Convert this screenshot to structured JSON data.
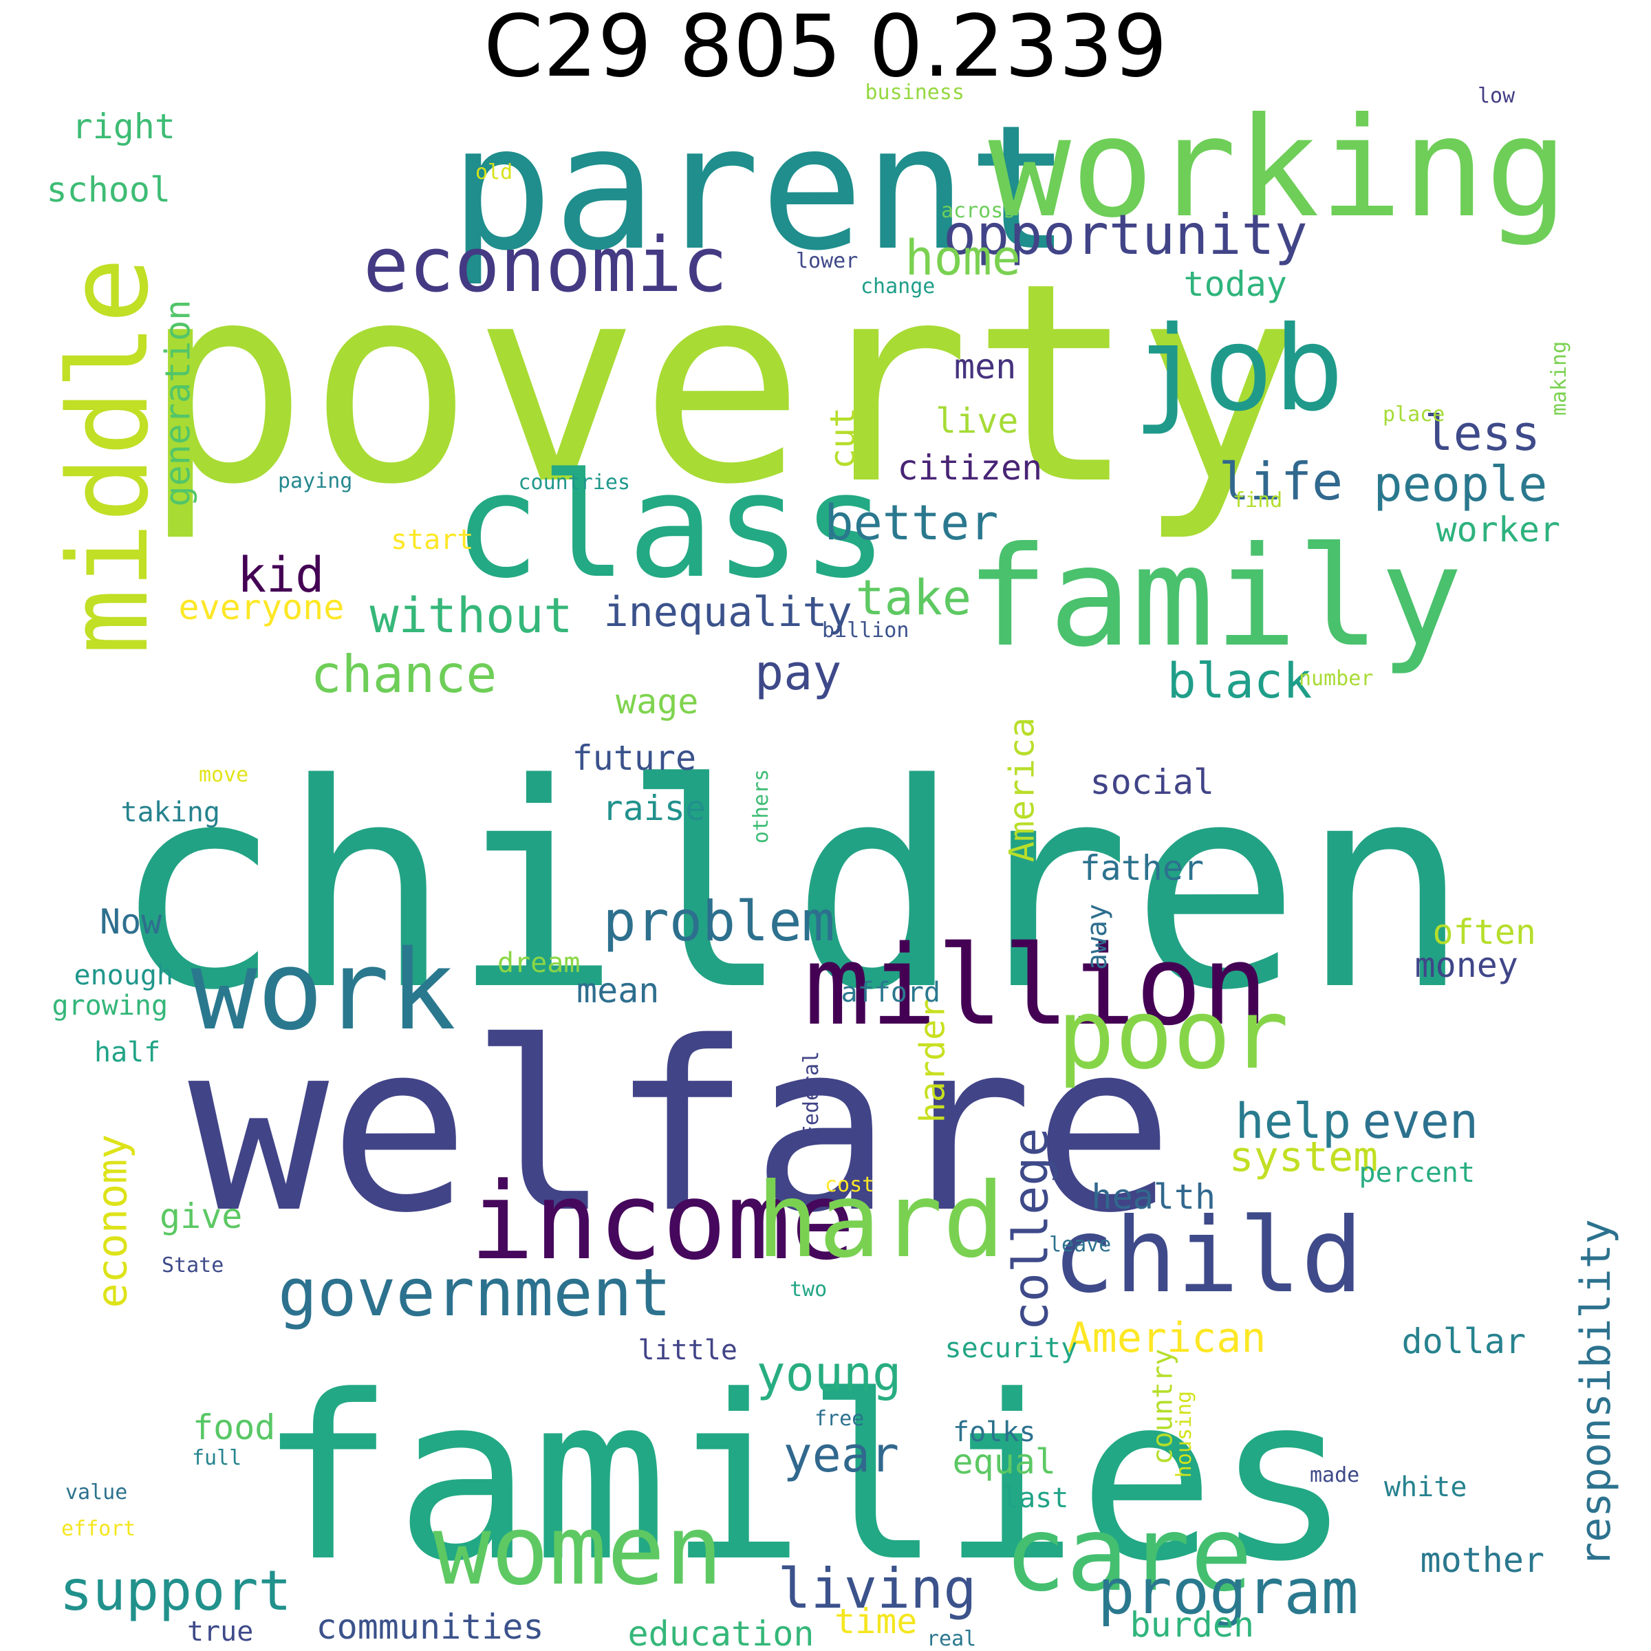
{
  "title": "C29 805 0.2339",
  "words": [
    {
      "text": "children",
      "color": "#22a284"
    },
    {
      "text": "poverty",
      "color": "#a8db34"
    },
    {
      "text": "welfare",
      "color": "#414487"
    },
    {
      "text": "families",
      "color": "#22a884"
    },
    {
      "text": "parent",
      "color": "#1f8e8c"
    },
    {
      "text": "working",
      "color": "#6ece58"
    },
    {
      "text": "class",
      "color": "#23a983"
    },
    {
      "text": "family",
      "color": "#4ac16d"
    },
    {
      "text": "middle",
      "color": "#c0df25"
    },
    {
      "text": "million",
      "color": "#440154"
    },
    {
      "text": "income",
      "color": "#46085c"
    },
    {
      "text": "child",
      "color": "#3e4a89"
    },
    {
      "text": "work",
      "color": "#2a788e"
    },
    {
      "text": "hard",
      "color": "#7ad151"
    },
    {
      "text": "care",
      "color": "#44bf70"
    },
    {
      "text": "women",
      "color": "#5ec962"
    },
    {
      "text": "job",
      "color": "#1f9a8a"
    },
    {
      "text": "poor",
      "color": "#86d549"
    },
    {
      "text": "economic",
      "color": "#443a83"
    },
    {
      "text": "government",
      "color": "#2c728e"
    },
    {
      "text": "program",
      "color": "#2a788e"
    },
    {
      "text": "support",
      "color": "#21918c"
    },
    {
      "text": "opportunity",
      "color": "#414487"
    },
    {
      "text": "problem",
      "color": "#2d708e"
    },
    {
      "text": "living",
      "color": "#3b528b"
    },
    {
      "text": "life",
      "color": "#31688e"
    },
    {
      "text": "chance",
      "color": "#6ece58"
    },
    {
      "text": "better",
      "color": "#2a788e"
    },
    {
      "text": "home",
      "color": "#7ad151"
    },
    {
      "text": "help",
      "color": "#297b8e"
    },
    {
      "text": "even",
      "color": "#2c728e"
    },
    {
      "text": "people",
      "color": "#2a788e"
    },
    {
      "text": "without",
      "color": "#35b779"
    },
    {
      "text": "inequality",
      "color": "#3b528b"
    },
    {
      "text": "take",
      "color": "#5ec962"
    },
    {
      "text": "black",
      "color": "#1f9e89"
    },
    {
      "text": "pay",
      "color": "#3e4989"
    },
    {
      "text": "kid",
      "color": "#440154"
    },
    {
      "text": "less",
      "color": "#3e4a89"
    },
    {
      "text": "young",
      "color": "#27ad81"
    },
    {
      "text": "year",
      "color": "#31688e"
    },
    {
      "text": "American",
      "color": "#fde725"
    },
    {
      "text": "college",
      "color": "#3e4a89"
    },
    {
      "text": "economy",
      "color": "#dde318"
    },
    {
      "text": "responsibility",
      "color": "#2c728e"
    },
    {
      "text": "communities",
      "color": "#3b528b"
    },
    {
      "text": "education",
      "color": "#35b779"
    },
    {
      "text": "system",
      "color": "#c2df23"
    },
    {
      "text": "generation",
      "color": "#52c569"
    },
    {
      "text": "America",
      "color": "#b8de29"
    },
    {
      "text": "harder",
      "color": "#c8e020"
    },
    {
      "text": "health",
      "color": "#31688e"
    },
    {
      "text": "dollar",
      "color": "#26828e"
    },
    {
      "text": "burden",
      "color": "#2fb47c"
    },
    {
      "text": "mother",
      "color": "#2a788e"
    },
    {
      "text": "right",
      "color": "#3dbc74"
    },
    {
      "text": "school",
      "color": "#3dbc74"
    },
    {
      "text": "today",
      "color": "#2fb47c"
    },
    {
      "text": "men",
      "color": "#46327e"
    },
    {
      "text": "live",
      "color": "#a5db36"
    },
    {
      "text": "citizen",
      "color": "#482475"
    },
    {
      "text": "worker",
      "color": "#2db27d"
    },
    {
      "text": "wage",
      "color": "#7fd34e"
    },
    {
      "text": "future",
      "color": "#3b528b"
    },
    {
      "text": "raise",
      "color": "#21918c"
    },
    {
      "text": "social",
      "color": "#414487"
    },
    {
      "text": "father",
      "color": "#2c728e"
    },
    {
      "text": "often",
      "color": "#b5de2b"
    },
    {
      "text": "money",
      "color": "#404688"
    },
    {
      "text": "dream",
      "color": "#8bd646"
    },
    {
      "text": "mean",
      "color": "#2e6e8e"
    },
    {
      "text": "cut",
      "color": "#b5de2b"
    },
    {
      "text": "everyone",
      "color": "#fde725"
    },
    {
      "text": "give",
      "color": "#5cc863"
    },
    {
      "text": "food",
      "color": "#58c765"
    },
    {
      "text": "folks",
      "color": "#2c728e"
    },
    {
      "text": "equal",
      "color": "#5cc863"
    },
    {
      "text": "time",
      "color": "#f4e61e"
    },
    {
      "text": "Now",
      "color": "#2e6f8e"
    },
    {
      "text": "enough",
      "color": "#1f968b"
    },
    {
      "text": "growing",
      "color": "#34b679"
    },
    {
      "text": "half",
      "color": "#20a386"
    },
    {
      "text": "away",
      "color": "#2e6e8e"
    },
    {
      "text": "country",
      "color": "#b5de2b"
    },
    {
      "text": "white",
      "color": "#26828e"
    },
    {
      "text": "last",
      "color": "#20a386"
    },
    {
      "text": "percent",
      "color": "#27ad81"
    },
    {
      "text": "security",
      "color": "#21a585"
    },
    {
      "text": "little",
      "color": "#414487"
    },
    {
      "text": "taking",
      "color": "#26828e"
    },
    {
      "text": "business",
      "color": "#95d840"
    },
    {
      "text": "low",
      "color": "#433e85"
    },
    {
      "text": "old",
      "color": "#d8e219"
    },
    {
      "text": "across",
      "color": "#6ccd5a"
    },
    {
      "text": "lower",
      "color": "#3f4889"
    },
    {
      "text": "change",
      "color": "#1f9e89"
    },
    {
      "text": "making",
      "color": "#7ad151"
    },
    {
      "text": "place",
      "color": "#a5db36"
    },
    {
      "text": "paying",
      "color": "#24878e"
    },
    {
      "text": "countries",
      "color": "#1f988b"
    },
    {
      "text": "start",
      "color": "#fde725"
    },
    {
      "text": "find",
      "color": "#b2dd2d"
    },
    {
      "text": "billion",
      "color": "#3b528b"
    },
    {
      "text": "number",
      "color": "#a8db34"
    },
    {
      "text": "move",
      "color": "#e2e418"
    },
    {
      "text": "others",
      "color": "#3dbc74"
    },
    {
      "text": "Federal",
      "color": "#414487"
    },
    {
      "text": "cost",
      "color": "#fde725"
    },
    {
      "text": "afford",
      "color": "#2a788e"
    },
    {
      "text": "leave",
      "color": "#2c728e"
    },
    {
      "text": "State",
      "color": "#3e4a89"
    },
    {
      "text": "two",
      "color": "#21a585"
    },
    {
      "text": "free",
      "color": "#2c728e"
    },
    {
      "text": "full",
      "color": "#25848e"
    },
    {
      "text": "housing",
      "color": "#d2e21b"
    },
    {
      "text": "made",
      "color": "#3e4a89"
    },
    {
      "text": "value",
      "color": "#2c728e"
    },
    {
      "text": "effort",
      "color": "#f4e61e"
    },
    {
      "text": "true",
      "color": "#3e4a89"
    },
    {
      "text": "real",
      "color": "#2a788e"
    }
  ]
}
